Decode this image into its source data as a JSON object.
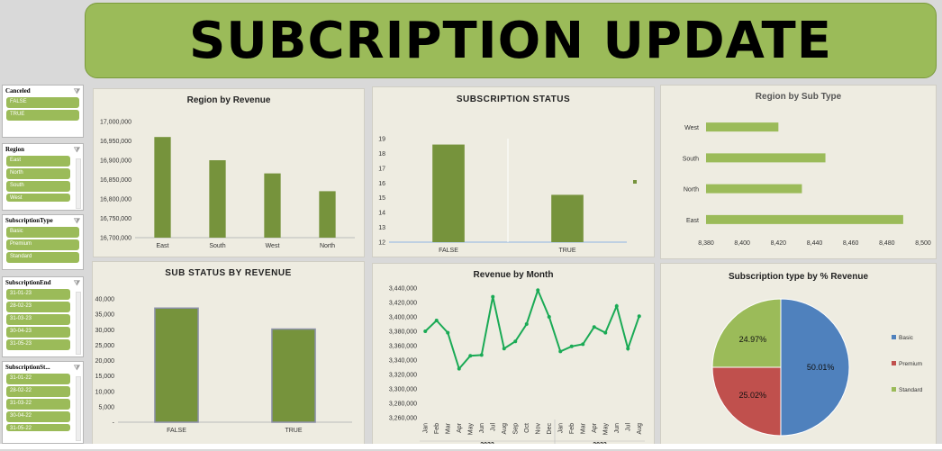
{
  "title": "SUBCRIPTION UPDATE",
  "slicers": [
    {
      "title": "Canceled",
      "items": [
        "FALSE",
        "TRUE"
      ]
    },
    {
      "title": "Region",
      "items": [
        "East",
        "North",
        "South",
        "West"
      ]
    },
    {
      "title": "SubscriptionType",
      "items": [
        "Basic",
        "Premium",
        "Standard"
      ]
    },
    {
      "title": "SubscriptionEnd",
      "items": [
        "31-01-23",
        "28-02-23",
        "31-03-23",
        "30-04-23",
        "31-05-23"
      ]
    },
    {
      "title": "SubscriptionSt...",
      "items": [
        "31-01-22",
        "28-02-22",
        "31-03-22",
        "30-04-22",
        "31-05-22"
      ]
    }
  ],
  "colors": {
    "bar": "#76933c",
    "bar_light": "#9bbb59",
    "line": "#1aaa55",
    "pie_blue": "#4f81bd",
    "pie_red": "#c0504d",
    "pie_green": "#9bbb59"
  },
  "chart_data": [
    {
      "id": "region-revenue",
      "type": "bar",
      "title": "Region by Revenue",
      "categories": [
        "East",
        "South",
        "West",
        "North"
      ],
      "values": [
        16960000,
        16900000,
        16866000,
        16820000
      ],
      "ylim": [
        16700000,
        17000000
      ],
      "yticks": [
        "17,000,000",
        "16,950,000",
        "16,900,000",
        "16,850,000",
        "16,800,000",
        "16,750,000",
        "16,700,000"
      ]
    },
    {
      "id": "subscription-status",
      "type": "bar",
      "title": "SUBSCRIPTION STATUS",
      "categories": [
        "FALSE",
        "TRUE"
      ],
      "values": [
        18.6,
        15.2
      ],
      "ylim": [
        12,
        19
      ],
      "yticks": [
        "19",
        "18",
        "17",
        "16",
        "15",
        "14",
        "13",
        "12"
      ]
    },
    {
      "id": "region-subtype",
      "type": "bar",
      "title": "Region by Sub Type",
      "orientation": "horizontal",
      "categories": [
        "West",
        "South",
        "North",
        "East"
      ],
      "values": [
        8420,
        8446,
        8433,
        8489
      ],
      "xlim": [
        8380,
        8500
      ],
      "xticks": [
        "8,380",
        "8,400",
        "8,420",
        "8,440",
        "8,460",
        "8,480",
        "8,500"
      ]
    },
    {
      "id": "sub-status-revenue",
      "type": "bar",
      "title": "SUB STATUS BY REVENUE",
      "categories": [
        "FALSE",
        "TRUE"
      ],
      "values": [
        37000,
        30200
      ],
      "ylim": [
        0,
        40000
      ],
      "yticks": [
        "40,000",
        "35,000",
        "30,000",
        "25,000",
        "20,000",
        "15,000",
        "10,000",
        "5,000",
        "-"
      ]
    },
    {
      "id": "revenue-month",
      "type": "line",
      "title": "Revenue by Month",
      "x": [
        "Jan",
        "Feb",
        "Mar",
        "Apr",
        "May",
        "Jun",
        "Jul",
        "Aug",
        "Sep",
        "Oct",
        "Nov",
        "Dec",
        "Jan",
        "Feb",
        "Mar",
        "Apr",
        "May",
        "Jun",
        "Jul",
        "Aug"
      ],
      "years": [
        "2022",
        "2023"
      ],
      "values": [
        3380000,
        3395000,
        3378000,
        3328000,
        3346000,
        3347000,
        3428000,
        3356000,
        3366000,
        3390000,
        3437000,
        3400000,
        3352000,
        3359000,
        3362000,
        3386000,
        3378000,
        3415000,
        3356000,
        3401000
      ],
      "ylim": [
        3260000,
        3440000
      ],
      "yticks": [
        "3,440,000",
        "3,420,000",
        "3,400,000",
        "3,380,000",
        "3,360,000",
        "3,340,000",
        "3,320,000",
        "3,300,000",
        "3,280,000",
        "3,260,000"
      ]
    },
    {
      "id": "subtype-percent",
      "type": "pie",
      "title": "Subscription type by % Revenue",
      "labels": [
        "Basic",
        "Premium",
        "Standard"
      ],
      "values": [
        50.01,
        25.02,
        24.97
      ],
      "data_labels": [
        "50.01%",
        "25.02%",
        "24.97%"
      ]
    }
  ]
}
